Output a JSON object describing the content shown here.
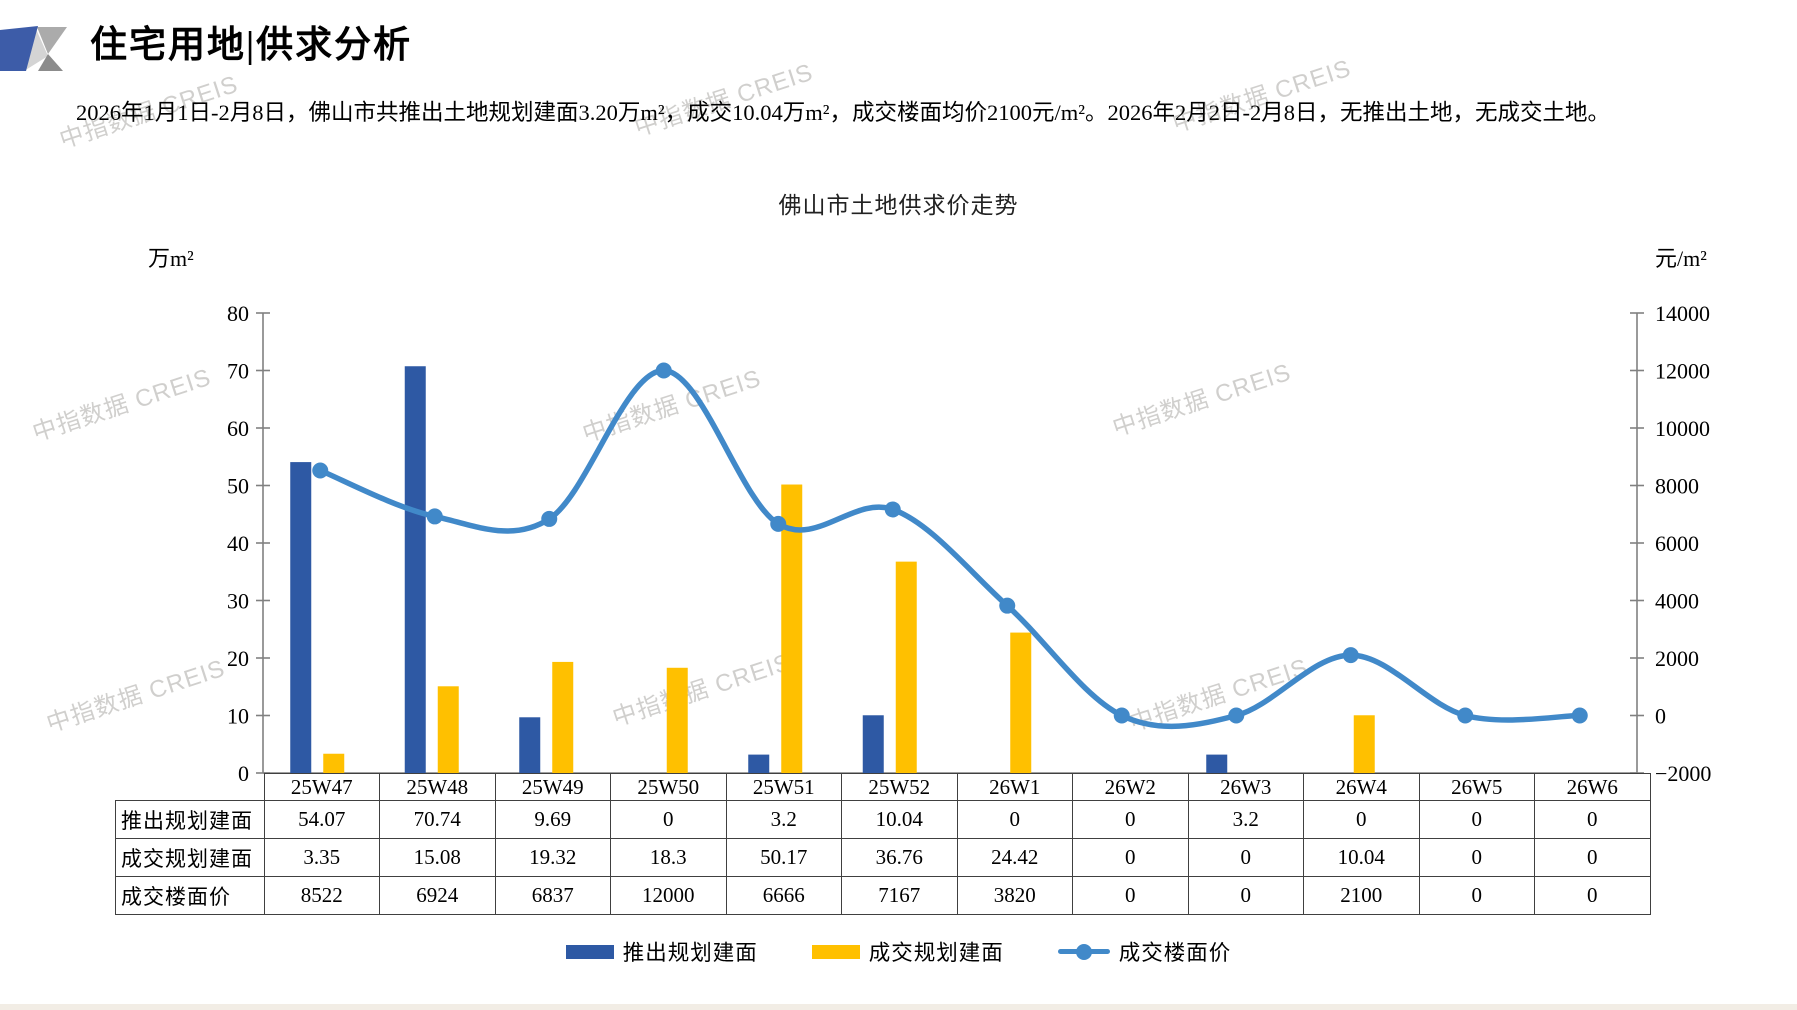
{
  "page": {
    "title": "住宅用地|供求分析",
    "summary": "2026年1月1日-2月8日，佛山市共推出土地规划建面3.20万m²，成交10.04万m²，成交楼面均价2100元/m²。2026年2月2日-2月8日，无推出土地，无成交土地。",
    "watermark": "中指数据 CREIS"
  },
  "chart_data": {
    "type": "bar+line",
    "title": "佛山市土地供求价走势",
    "categories": [
      "25W47",
      "25W48",
      "25W49",
      "25W50",
      "25W51",
      "25W52",
      "26W1",
      "26W2",
      "26W3",
      "26W4",
      "26W5",
      "26W6"
    ],
    "series": [
      {
        "name": "推出规划建面",
        "type": "bar",
        "axis": "left",
        "color": "#2E59A4",
        "values": [
          54.07,
          70.74,
          9.69,
          0,
          3.2,
          10.04,
          0,
          0,
          3.2,
          0,
          0,
          0
        ]
      },
      {
        "name": "成交规划建面",
        "type": "bar",
        "axis": "left",
        "color": "#FFC000",
        "values": [
          3.35,
          15.08,
          19.32,
          18.3,
          50.17,
          36.76,
          24.42,
          0,
          0,
          10.04,
          0,
          0
        ]
      },
      {
        "name": "成交楼面价",
        "type": "line",
        "axis": "right",
        "color": "#4189C9",
        "values": [
          8522,
          6924,
          6837,
          12000,
          6666,
          7167,
          3820,
          0,
          0,
          2100,
          0,
          0
        ]
      }
    ],
    "left_axis": {
      "unit": "万m²",
      "min": 0,
      "max": 80,
      "step": 10
    },
    "right_axis": {
      "unit": "元/m²",
      "min": -2000,
      "max": 14000,
      "step": 2000
    },
    "legend_position": "bottom",
    "grid": false
  },
  "table": {
    "rows": [
      {
        "label": "推出规划建面",
        "values": [
          "54.07",
          "70.74",
          "9.69",
          "0",
          "3.2",
          "10.04",
          "0",
          "0",
          "3.2",
          "0",
          "0",
          "0"
        ]
      },
      {
        "label": "成交规划建面",
        "values": [
          "3.35",
          "15.08",
          "19.32",
          "18.3",
          "50.17",
          "36.76",
          "24.42",
          "0",
          "0",
          "10.04",
          "0",
          "0"
        ]
      },
      {
        "label": "成交楼面价",
        "values": [
          "8522",
          "6924",
          "6837",
          "12000",
          "6666",
          "7167",
          "3820",
          "0",
          "0",
          "2100",
          "0",
          "0"
        ]
      }
    ]
  }
}
